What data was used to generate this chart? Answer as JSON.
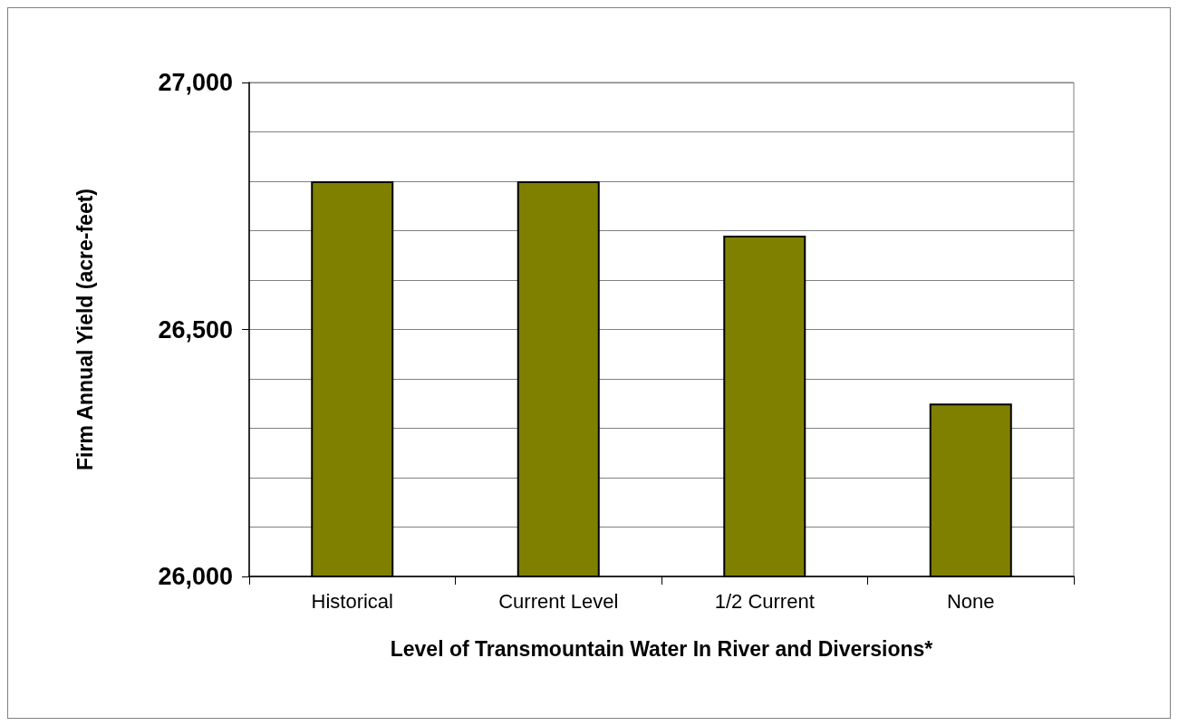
{
  "chart_data": {
    "type": "bar",
    "categories": [
      "Historical",
      "Current Level",
      "1/2 Current",
      "None"
    ],
    "values": [
      26800,
      26800,
      26690,
      26350
    ],
    "color": "#808000",
    "xlabel": "Level of Transmountain Water In River and Diversions*",
    "ylabel": "Firm Annual Yield (acre-feet)",
    "ylim": [
      26000,
      27000
    ],
    "yticks": [
      {
        "value": 26000,
        "label": "26,000"
      },
      {
        "value": 26100,
        "label": null
      },
      {
        "value": 26200,
        "label": null
      },
      {
        "value": 26300,
        "label": null
      },
      {
        "value": 26400,
        "label": null
      },
      {
        "value": 26500,
        "label": "26,500"
      },
      {
        "value": 26600,
        "label": null
      },
      {
        "value": 26700,
        "label": null
      },
      {
        "value": 26800,
        "label": null
      },
      {
        "value": 26900,
        "label": null
      },
      {
        "value": 27000,
        "label": "27,000"
      }
    ],
    "grid": "y"
  }
}
